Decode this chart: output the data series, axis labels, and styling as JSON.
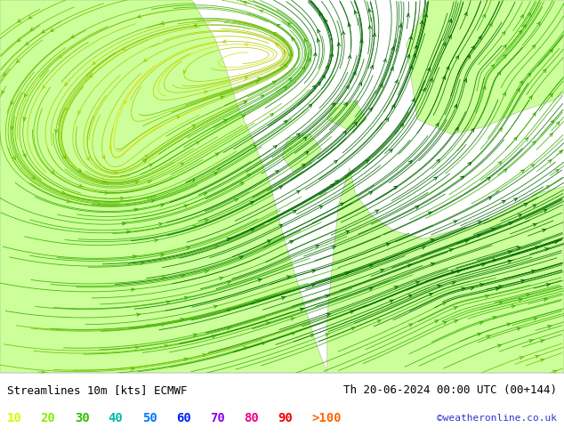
{
  "title_left": "Streamlines 10m [kts] ECMWF",
  "title_right": "Th 20-06-2024 00:00 UTC (00+144)",
  "credit": "©weatheronline.co.uk",
  "legend_labels": [
    "10",
    "20",
    "30",
    "40",
    "50",
    "60",
    "70",
    "80",
    "90",
    ">100"
  ],
  "legend_colors": [
    "#ccff00",
    "#88ee00",
    "#33bb00",
    "#00bbaa",
    "#0077ff",
    "#0022ee",
    "#8800ee",
    "#ee0088",
    "#ee0000",
    "#ff6600"
  ],
  "bg_color": "#ffffff",
  "map_bg_land": "#ccff99",
  "map_bg_sea": "#e0e0e0",
  "font_size_label": 9,
  "font_size_credit": 8,
  "fig_width": 6.34,
  "fig_height": 4.9,
  "dpi": 100
}
